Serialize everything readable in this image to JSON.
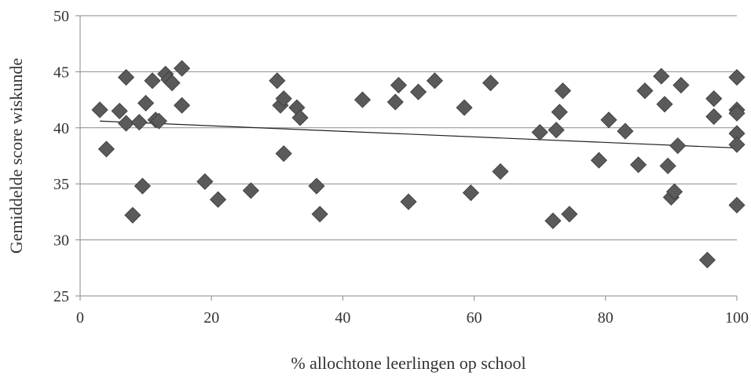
{
  "chart_data": {
    "type": "scatter",
    "title": "",
    "xlabel": "% allochtone leerlingen op school",
    "ylabel": "Gemiddelde score wiskunde",
    "xlim": [
      0,
      100
    ],
    "ylim": [
      25,
      50
    ],
    "xticks": [
      "0",
      "20",
      "40",
      "60",
      "80",
      "100"
    ],
    "yticks": [
      "25",
      "30",
      "35",
      "40",
      "45",
      "50"
    ],
    "grid": "horizontal",
    "marker": "diamond",
    "marker_color": "#5a5a5a",
    "trendline": {
      "x": [
        3,
        100
      ],
      "y": [
        40.6,
        38.2
      ]
    },
    "points": [
      [
        3,
        41.6
      ],
      [
        4,
        38.1
      ],
      [
        6,
        41.5
      ],
      [
        7,
        44.5
      ],
      [
        7,
        40.4
      ],
      [
        8,
        32.2
      ],
      [
        9,
        40.5
      ],
      [
        9.5,
        34.8
      ],
      [
        10,
        42.2
      ],
      [
        11,
        44.2
      ],
      [
        11.5,
        40.7
      ],
      [
        12,
        40.6
      ],
      [
        13,
        44.8
      ],
      [
        13.5,
        44.3
      ],
      [
        14,
        44.0
      ],
      [
        15.5,
        45.3
      ],
      [
        15.5,
        42.0
      ],
      [
        19,
        35.2
      ],
      [
        21,
        33.6
      ],
      [
        26,
        34.4
      ],
      [
        30,
        44.2
      ],
      [
        30.5,
        42.0
      ],
      [
        31,
        42.6
      ],
      [
        31,
        37.7
      ],
      [
        33,
        41.8
      ],
      [
        33.5,
        40.9
      ],
      [
        36,
        34.8
      ],
      [
        36.5,
        32.3
      ],
      [
        43,
        42.5
      ],
      [
        48,
        42.3
      ],
      [
        48.5,
        43.8
      ],
      [
        50,
        33.4
      ],
      [
        51.5,
        43.2
      ],
      [
        54,
        44.2
      ],
      [
        58.5,
        41.8
      ],
      [
        59.5,
        34.2
      ],
      [
        62.5,
        44.0
      ],
      [
        64,
        36.1
      ],
      [
        70,
        39.6
      ],
      [
        72,
        31.7
      ],
      [
        72.5,
        39.8
      ],
      [
        73,
        41.4
      ],
      [
        73.5,
        43.3
      ],
      [
        74.5,
        32.3
      ],
      [
        79,
        37.1
      ],
      [
        80.5,
        40.7
      ],
      [
        83,
        39.7
      ],
      [
        85,
        36.7
      ],
      [
        86,
        43.3
      ],
      [
        88.5,
        44.6
      ],
      [
        89,
        42.1
      ],
      [
        89.5,
        36.6
      ],
      [
        90,
        33.8
      ],
      [
        90.5,
        34.3
      ],
      [
        91,
        38.4
      ],
      [
        91.5,
        43.8
      ],
      [
        95.5,
        28.2
      ],
      [
        96.5,
        42.6
      ],
      [
        96.5,
        41.0
      ],
      [
        100,
        44.5
      ],
      [
        100,
        41.6
      ],
      [
        100,
        41.3
      ],
      [
        100,
        39.5
      ],
      [
        100,
        38.5
      ],
      [
        100,
        33.1
      ]
    ]
  }
}
